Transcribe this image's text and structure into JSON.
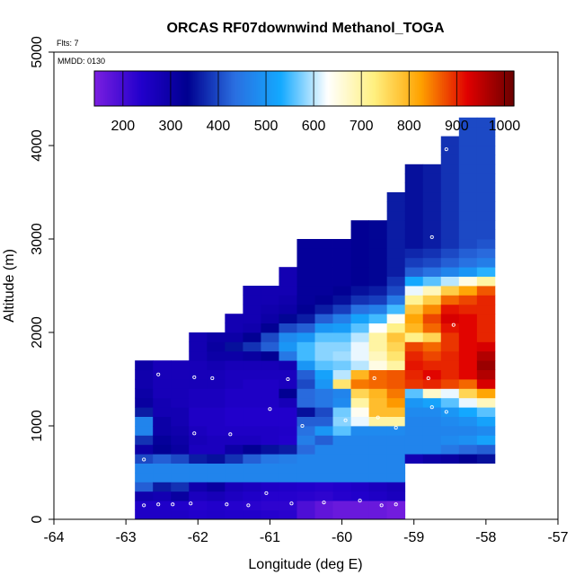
{
  "chart_data": {
    "type": "heatmap",
    "title": "ORCAS RF07downwind Methanol_TOGA",
    "subtitle_flights": "Flts: 7",
    "subtitle_date": "MMDD: 0130",
    "xlabel": "Longitude (deg E)",
    "ylabel": "Altitude (m)",
    "xlim": [
      -64,
      -57
    ],
    "ylim": [
      0,
      5000
    ],
    "x_ticks": [
      -64,
      -63,
      -62,
      -61,
      -60,
      -59,
      -58,
      -57
    ],
    "x_tick_labels": [
      "-64",
      "-63",
      "-62",
      "-61",
      "-60",
      "-59",
      "-58",
      "-57"
    ],
    "y_ticks": [
      0,
      1000,
      2000,
      3000,
      4000,
      5000
    ],
    "y_tick_labels": [
      "0",
      "1000",
      "2000",
      "3000",
      "4000",
      "5000"
    ],
    "colorbar": {
      "range": [
        140,
        1020
      ],
      "ticks": [
        200,
        300,
        400,
        500,
        600,
        700,
        800,
        900,
        1000
      ],
      "tick_labels": [
        "200",
        "300",
        "400",
        "500",
        "600",
        "700",
        "800",
        "900",
        "1000"
      ],
      "colors": [
        "#7b1fe0",
        "#2200cc",
        "#000090",
        "#2a6ee0",
        "#13a9ff",
        "#ffffff",
        "#fff080",
        "#ffa200",
        "#e00000",
        "#6a0000"
      ]
    },
    "cell_size": {
      "lon": 0.25,
      "alt": 100
    },
    "columns": [
      {
        "lon": -62.75,
        "alt_min": 0,
        "alt_max": 1700,
        "values": [
          250,
          245,
          290,
          420,
          470,
          470,
          400,
          300,
          380,
          470,
          470,
          360,
          310,
          300,
          290,
          290,
          300
        ]
      },
      {
        "lon": -62.5,
        "alt_min": 0,
        "alt_max": 1700,
        "values": [
          250,
          245,
          280,
          360,
          470,
          470,
          420,
          330,
          320,
          300,
          300,
          280,
          280,
          270,
          270,
          270,
          270
        ]
      },
      {
        "lon": -62.25,
        "alt_min": 0,
        "alt_max": 1700,
        "values": [
          250,
          240,
          310,
          380,
          470,
          470,
          400,
          310,
          300,
          290,
          280,
          280,
          270,
          270,
          270,
          270,
          270
        ]
      },
      {
        "lon": -62.0,
        "alt_min": 0,
        "alt_max": 2000,
        "values": [
          240,
          235,
          260,
          290,
          470,
          470,
          360,
          260,
          270,
          260,
          250,
          250,
          260,
          260,
          270,
          270,
          270,
          280,
          280,
          280
        ]
      },
      {
        "lon": -61.75,
        "alt_min": 0,
        "alt_max": 2000,
        "values": [
          245,
          240,
          270,
          310,
          470,
          470,
          350,
          260,
          260,
          250,
          250,
          250,
          260,
          260,
          270,
          270,
          280,
          300,
          310,
          300
        ]
      },
      {
        "lon": -61.5,
        "alt_min": 0,
        "alt_max": 2200,
        "values": [
          240,
          235,
          255,
          270,
          470,
          470,
          380,
          300,
          260,
          250,
          240,
          240,
          250,
          250,
          260,
          260,
          270,
          300,
          350,
          300,
          280,
          280
        ]
      },
      {
        "lon": -61.25,
        "alt_min": 0,
        "alt_max": 2500,
        "values": [
          240,
          230,
          245,
          260,
          470,
          470,
          420,
          330,
          260,
          250,
          240,
          240,
          250,
          250,
          250,
          260,
          270,
          310,
          380,
          330,
          290,
          280,
          280,
          280,
          280
        ]
      },
      {
        "lon": -61.0,
        "alt_min": 0,
        "alt_max": 2500,
        "values": [
          235,
          225,
          235,
          250,
          470,
          470,
          450,
          350,
          250,
          250,
          240,
          240,
          250,
          250,
          250,
          260,
          270,
          330,
          420,
          400,
          330,
          300,
          290,
          280,
          280
        ]
      },
      {
        "lon": -60.75,
        "alt_min": 0,
        "alt_max": 2700,
        "values": [
          230,
          225,
          235,
          245,
          470,
          470,
          460,
          360,
          240,
          245,
          240,
          240,
          270,
          330,
          260,
          260,
          280,
          450,
          500,
          480,
          400,
          340,
          300,
          290,
          280,
          280,
          280
        ]
      },
      {
        "lon": -60.5,
        "alt_min": 0,
        "alt_max": 3000,
        "values": [
          190,
          190,
          230,
          240,
          470,
          470,
          470,
          430,
          460,
          440,
          420,
          350,
          430,
          430,
          400,
          420,
          500,
          550,
          550,
          500,
          420,
          360,
          330,
          320,
          320,
          320,
          320,
          320,
          320,
          320
        ]
      },
      {
        "lon": -60.25,
        "alt_min": 0,
        "alt_max": 3000,
        "values": [
          170,
          170,
          225,
          235,
          470,
          470,
          470,
          470,
          420,
          500,
          420,
          400,
          450,
          450,
          500,
          520,
          560,
          580,
          580,
          560,
          500,
          420,
          360,
          330,
          320,
          320,
          320,
          320,
          320,
          320
        ]
      },
      {
        "lon": -60.0,
        "alt_min": 0,
        "alt_max": 3000,
        "values": [
          160,
          160,
          235,
          240,
          470,
          470,
          470,
          470,
          470,
          560,
          580,
          570,
          480,
          470,
          740,
          600,
          570,
          590,
          580,
          560,
          510,
          460,
          390,
          350,
          330,
          320,
          320,
          320,
          320,
          320
        ]
      },
      {
        "lon": -59.75,
        "alt_min": 0,
        "alt_max": 3200,
        "values": [
          160,
          160,
          240,
          250,
          470,
          470,
          470,
          470,
          470,
          480,
          620,
          640,
          700,
          760,
          850,
          800,
          600,
          620,
          620,
          600,
          560,
          520,
          440,
          380,
          350,
          330,
          330,
          330,
          330,
          330,
          330,
          330
        ]
      },
      {
        "lon": -59.5,
        "alt_min": 0,
        "alt_max": 3200,
        "values": [
          160,
          160,
          250,
          260,
          470,
          470,
          470,
          470,
          470,
          480,
          700,
          790,
          790,
          800,
          860,
          860,
          650,
          680,
          700,
          700,
          630,
          550,
          460,
          390,
          360,
          340,
          340,
          340,
          340,
          340,
          340,
          340
        ]
      },
      {
        "lon": -59.25,
        "alt_min": 0,
        "alt_max": 3500,
        "values": [
          150,
          150,
          260,
          270,
          470,
          470,
          470,
          470,
          470,
          480,
          700,
          790,
          830,
          850,
          870,
          870,
          700,
          740,
          760,
          780,
          720,
          640,
          550,
          450,
          400,
          380,
          360,
          360,
          360,
          360,
          360,
          360,
          360,
          360,
          360
        ]
      },
      {
        "lon": -59.0,
        "alt_min": 300,
        "alt_max": 3500,
        "values": [
          null,
          null,
          null,
          280,
          470,
          470,
          470,
          470,
          480,
          500,
          560,
          890,
          900,
          910,
          900,
          880,
          720,
          800,
          820,
          780,
          710,
          620,
          530,
          420,
          390,
          370,
          350,
          350,
          350,
          350,
          350,
          350,
          350,
          350,
          350
        ]
      },
      {
        "lon": -58.75,
        "alt_min": 300,
        "alt_max": 3500,
        "values": [
          null,
          null,
          null,
          300,
          470,
          470,
          470,
          470,
          480,
          520,
          670,
          900,
          920,
          900,
          880,
          860,
          760,
          860,
          880,
          840,
          770,
          680,
          560,
          440,
          400,
          380,
          360,
          360,
          360,
          360,
          360,
          360,
          360,
          360,
          360
        ]
      },
      {
        "lon": -58.5,
        "alt_min": 300,
        "alt_max": 3800,
        "values": [
          null,
          null,
          null,
          310,
          450,
          480,
          470,
          480,
          500,
          560,
          620,
          880,
          900,
          900,
          900,
          890,
          890,
          910,
          930,
          910,
          860,
          770,
          600,
          470,
          420,
          400,
          380,
          380,
          380,
          380,
          380,
          380,
          380,
          380,
          380,
          380,
          380,
          380
        ]
      },
      {
        "lon": -58.25,
        "alt_min": 300,
        "alt_max": 4000,
        "values": [
          null,
          null,
          null,
          330,
          430,
          490,
          470,
          490,
          530,
          620,
          760,
          860,
          920,
          920,
          920,
          920,
          920,
          920,
          920,
          900,
          880,
          820,
          650,
          500,
          440,
          420,
          400,
          400,
          400,
          400,
          400,
          400,
          400,
          400,
          400,
          400,
          400,
          400,
          400,
          400
        ]
      },
      {
        "lon": -58.0,
        "alt_min": 300,
        "alt_max": 4000,
        "values": [
          null,
          null,
          null,
          350,
          420,
          520,
          480,
          520,
          560,
          680,
          820,
          930,
          960,
          980,
          960,
          930,
          900,
          900,
          900,
          900,
          900,
          870,
          700,
          540,
          460,
          430,
          410,
          400,
          400,
          400,
          400,
          400,
          400,
          400,
          400,
          400,
          400,
          400,
          400,
          400
        ]
      }
    ],
    "sample_points": [
      {
        "lon": -62.75,
        "alt": 150
      },
      {
        "lon": -62.55,
        "alt": 160
      },
      {
        "lon": -62.35,
        "alt": 160
      },
      {
        "lon": -62.1,
        "alt": 170
      },
      {
        "lon": -61.6,
        "alt": 160
      },
      {
        "lon": -61.3,
        "alt": 150
      },
      {
        "lon": -61.05,
        "alt": 280
      },
      {
        "lon": -60.7,
        "alt": 170
      },
      {
        "lon": -60.25,
        "alt": 180
      },
      {
        "lon": -59.75,
        "alt": 200
      },
      {
        "lon": -59.45,
        "alt": 150
      },
      {
        "lon": -59.25,
        "alt": 160
      },
      {
        "lon": -58.5,
        "alt": 300
      },
      {
        "lon": -58.4,
        "alt": 300
      },
      {
        "lon": -58.2,
        "alt": 310
      },
      {
        "lon": -62.75,
        "alt": 640
      },
      {
        "lon": -62.05,
        "alt": 920
      },
      {
        "lon": -61.55,
        "alt": 910
      },
      {
        "lon": -61.0,
        "alt": 1180
      },
      {
        "lon": -60.55,
        "alt": 1000
      },
      {
        "lon": -59.95,
        "alt": 1060
      },
      {
        "lon": -59.5,
        "alt": 1090
      },
      {
        "lon": -59.25,
        "alt": 980
      },
      {
        "lon": -58.75,
        "alt": 1200
      },
      {
        "lon": -58.55,
        "alt": 1150
      },
      {
        "lon": -62.55,
        "alt": 1550
      },
      {
        "lon": -62.05,
        "alt": 1520
      },
      {
        "lon": -61.8,
        "alt": 1510
      },
      {
        "lon": -60.75,
        "alt": 1500
      },
      {
        "lon": -59.55,
        "alt": 1510
      },
      {
        "lon": -58.8,
        "alt": 1510
      },
      {
        "lon": -58.45,
        "alt": 2080
      },
      {
        "lon": -58.75,
        "alt": 3020
      },
      {
        "lon": -58.55,
        "alt": 3960
      }
    ]
  }
}
